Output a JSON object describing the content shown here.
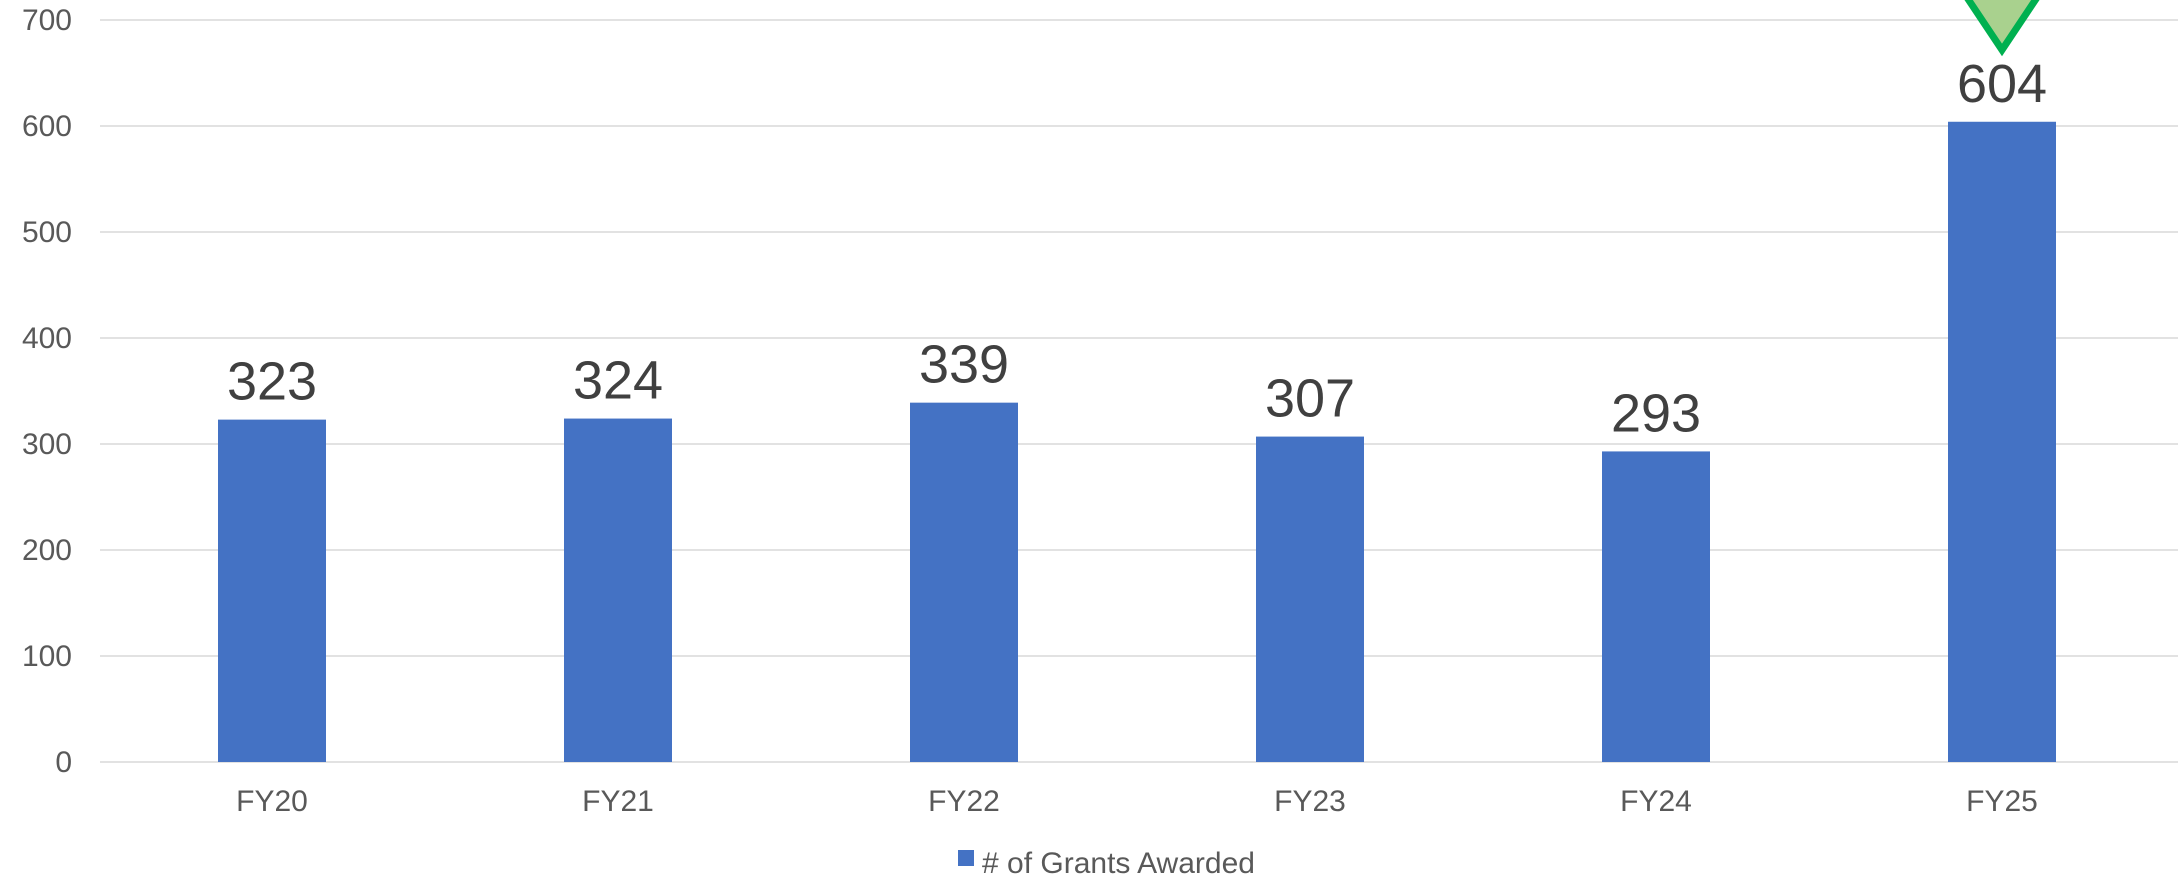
{
  "chart_data": {
    "type": "bar",
    "categories": [
      "FY20",
      "FY21",
      "FY22",
      "FY23",
      "FY24",
      "FY25"
    ],
    "series": [
      {
        "name": "# of Grants Awarded",
        "values": [
          323,
          324,
          339,
          307,
          293,
          604
        ],
        "color": "#4472C4"
      }
    ],
    "ylim": [
      0,
      700
    ],
    "yticks": [
      0,
      100,
      200,
      300,
      400,
      500,
      600,
      700
    ],
    "grid": true,
    "legend_position": "bottom-center",
    "colors": {
      "bar": "#4472C4",
      "grid": "#D9D9D9",
      "axis_text": "#595959",
      "data_label": "#404040",
      "marker_fill": "#A9D18E",
      "marker_stroke": "#00B050"
    },
    "annotation": {
      "category": "FY25",
      "icon": "down-triangle-icon"
    }
  }
}
